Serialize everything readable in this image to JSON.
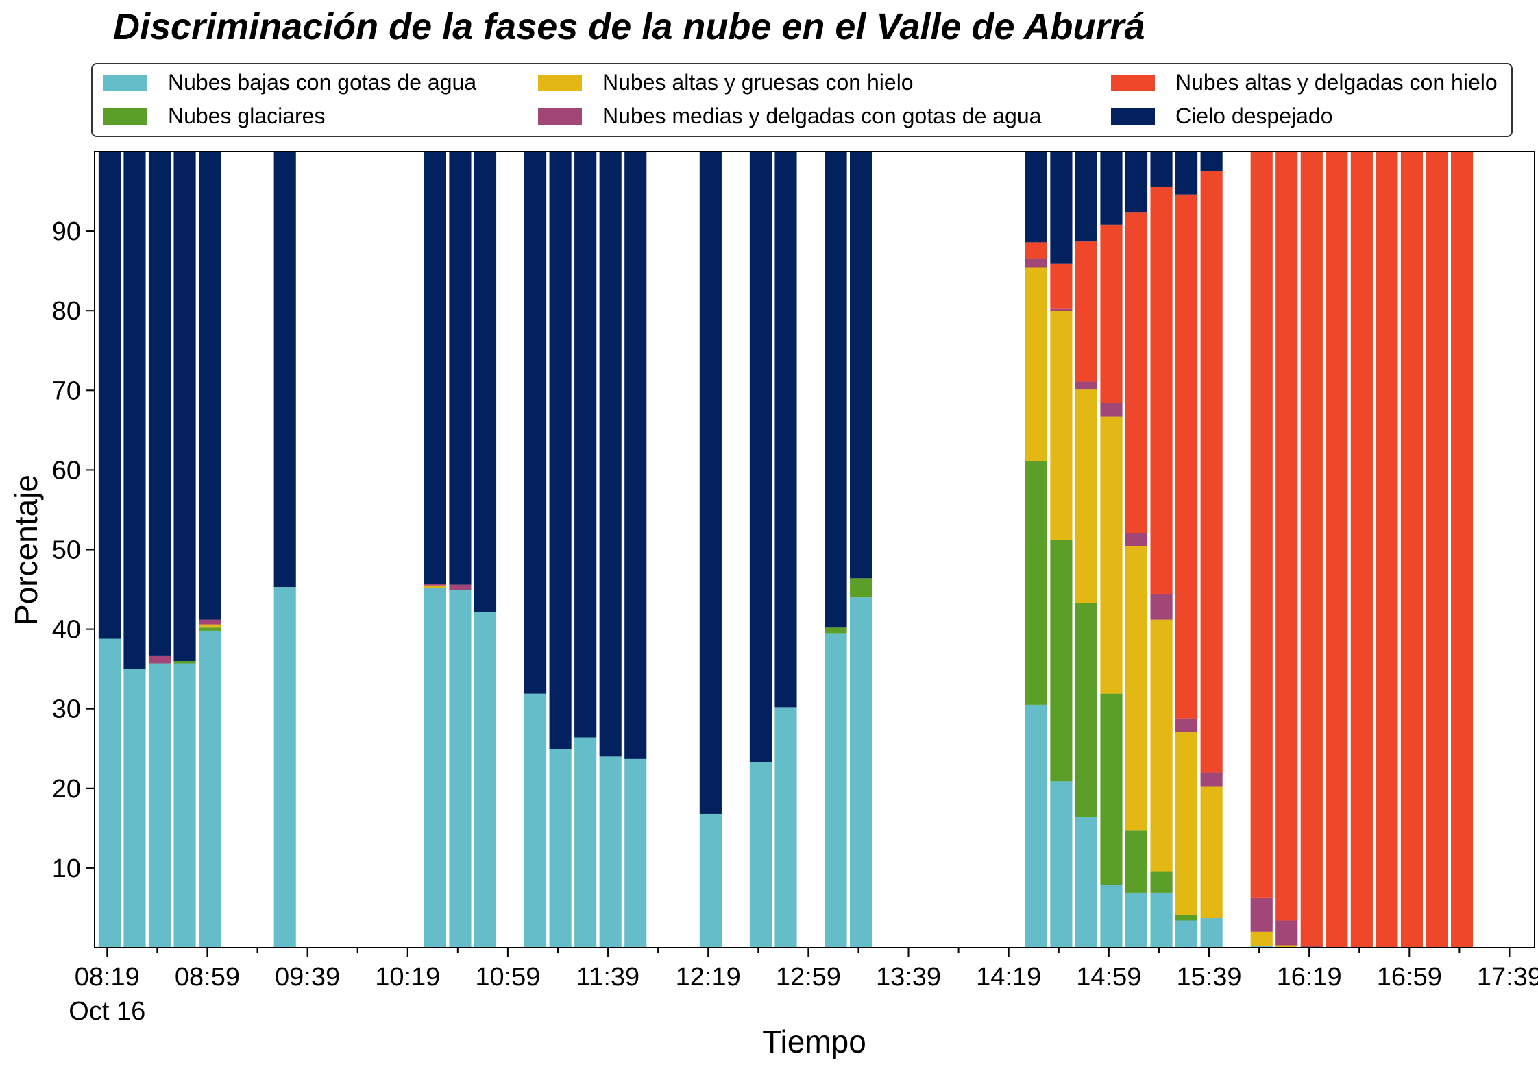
{
  "chart_data": {
    "type": "bar",
    "stacked": true,
    "title": "Discriminación de la fases de la nube en el Valle de Aburrá",
    "xlabel": "Tiempo",
    "ylabel": "Porcentaje",
    "ylim": [
      0,
      100
    ],
    "yticks": [
      10,
      20,
      30,
      40,
      50,
      60,
      70,
      80,
      90
    ],
    "xlim_minutes": [
      494,
      1069
    ],
    "xticks": [
      {
        "label": "08:19",
        "sub": "Oct 16",
        "minute": 499
      },
      {
        "label": "08:59",
        "sub": "",
        "minute": 539
      },
      {
        "label": "09:39",
        "sub": "",
        "minute": 579
      },
      {
        "label": "10:19",
        "sub": "",
        "minute": 619
      },
      {
        "label": "10:59",
        "sub": "",
        "minute": 659
      },
      {
        "label": "11:39",
        "sub": "",
        "minute": 699
      },
      {
        "label": "12:19",
        "sub": "",
        "minute": 739
      },
      {
        "label": "12:59",
        "sub": "",
        "minute": 779
      },
      {
        "label": "13:39",
        "sub": "",
        "minute": 819
      },
      {
        "label": "14:19",
        "sub": "",
        "minute": 859
      },
      {
        "label": "14:59",
        "sub": "",
        "minute": 899
      },
      {
        "label": "15:39",
        "sub": "",
        "minute": 939
      },
      {
        "label": "16:19",
        "sub": "",
        "minute": 979
      },
      {
        "label": "16:59",
        "sub": "",
        "minute": 1019
      },
      {
        "label": "17:39",
        "sub": "",
        "minute": 1059
      }
    ],
    "legend_position": "top",
    "series": [
      {
        "name": "Nubes bajas con gotas de agua",
        "color": "#64bdc8"
      },
      {
        "name": "Nubes glaciares",
        "color": "#5b9e28"
      },
      {
        "name": "Nubes altas y gruesas con hielo",
        "color": "#e3b714"
      },
      {
        "name": "Nubes medias y delgadas con gotas de agua",
        "color": "#a24677"
      },
      {
        "name": "Nubes altas y delgadas con hielo",
        "color": "#ee472a"
      },
      {
        "name": "Cielo despejado",
        "color": "#03205f"
      }
    ],
    "bars": [
      {
        "minute": 500,
        "values": [
          38.8,
          0,
          0,
          0,
          0,
          61.2
        ]
      },
      {
        "minute": 510,
        "values": [
          35.0,
          0,
          0,
          0,
          0,
          65.0
        ]
      },
      {
        "minute": 520,
        "values": [
          35.7,
          0,
          0,
          1.0,
          0,
          63.3
        ]
      },
      {
        "minute": 530,
        "values": [
          35.7,
          0.3,
          0,
          0,
          0,
          64.0
        ]
      },
      {
        "minute": 540,
        "values": [
          39.8,
          0.4,
          0.4,
          0.6,
          0,
          58.8
        ]
      },
      {
        "minute": 570,
        "values": [
          45.3,
          0,
          0,
          0,
          0,
          54.7
        ]
      },
      {
        "minute": 630,
        "values": [
          45.2,
          0,
          0.3,
          0.2,
          0,
          54.3
        ]
      },
      {
        "minute": 640,
        "values": [
          44.9,
          0,
          0,
          0.7,
          0,
          54.4
        ]
      },
      {
        "minute": 650,
        "values": [
          42.2,
          0,
          0,
          0,
          0,
          57.8
        ]
      },
      {
        "minute": 670,
        "values": [
          31.9,
          0,
          0,
          0,
          0,
          68.1
        ]
      },
      {
        "minute": 680,
        "values": [
          24.9,
          0,
          0,
          0,
          0,
          75.1
        ]
      },
      {
        "minute": 690,
        "values": [
          26.4,
          0,
          0,
          0,
          0,
          73.6
        ]
      },
      {
        "minute": 700,
        "values": [
          24.0,
          0,
          0,
          0,
          0,
          76.0
        ]
      },
      {
        "minute": 710,
        "values": [
          23.7,
          0,
          0,
          0,
          0,
          76.3
        ]
      },
      {
        "minute": 740,
        "values": [
          16.8,
          0,
          0,
          0,
          0,
          83.2
        ]
      },
      {
        "minute": 760,
        "values": [
          23.3,
          0,
          0,
          0,
          0,
          76.7
        ]
      },
      {
        "minute": 770,
        "values": [
          30.2,
          0,
          0,
          0,
          0,
          69.8
        ]
      },
      {
        "minute": 790,
        "values": [
          39.5,
          0.7,
          0,
          0,
          0,
          59.8
        ]
      },
      {
        "minute": 800,
        "values": [
          44.0,
          2.4,
          0,
          0,
          0,
          53.6
        ]
      },
      {
        "minute": 870,
        "values": [
          30.5,
          30.6,
          24.3,
          1.2,
          2.0,
          11.4
        ]
      },
      {
        "minute": 880,
        "values": [
          20.9,
          30.3,
          28.8,
          0.3,
          5.6,
          14.1
        ]
      },
      {
        "minute": 890,
        "values": [
          16.4,
          26.9,
          26.8,
          1.0,
          17.6,
          11.3
        ]
      },
      {
        "minute": 900,
        "values": [
          7.9,
          24.0,
          34.8,
          1.7,
          22.4,
          9.2
        ]
      },
      {
        "minute": 910,
        "values": [
          6.9,
          7.8,
          35.7,
          1.7,
          40.3,
          7.6
        ]
      },
      {
        "minute": 920,
        "values": [
          6.9,
          2.7,
          31.6,
          3.2,
          51.2,
          4.4
        ]
      },
      {
        "minute": 930,
        "values": [
          3.4,
          0.7,
          23.0,
          1.7,
          65.8,
          5.4
        ]
      },
      {
        "minute": 940,
        "values": [
          3.7,
          0,
          16.5,
          1.8,
          75.5,
          2.5
        ]
      },
      {
        "minute": 960,
        "values": [
          0.2,
          0,
          1.8,
          4.3,
          93.7,
          0
        ]
      },
      {
        "minute": 970,
        "values": [
          0,
          0,
          0.3,
          3.1,
          96.6,
          0
        ]
      },
      {
        "minute": 980,
        "values": [
          0,
          0,
          0,
          0.2,
          99.8,
          0
        ]
      },
      {
        "minute": 990,
        "values": [
          0,
          0,
          0,
          0,
          100,
          0
        ]
      },
      {
        "minute": 1000,
        "values": [
          0,
          0,
          0,
          0,
          100,
          0
        ]
      },
      {
        "minute": 1010,
        "values": [
          0,
          0,
          0,
          0,
          100,
          0
        ]
      },
      {
        "minute": 1020,
        "values": [
          0,
          0,
          0,
          0,
          100,
          0
        ]
      },
      {
        "minute": 1030,
        "values": [
          0,
          0,
          0,
          0,
          100,
          0
        ]
      },
      {
        "minute": 1040,
        "values": [
          0,
          0,
          0,
          0,
          100,
          0
        ]
      }
    ]
  }
}
